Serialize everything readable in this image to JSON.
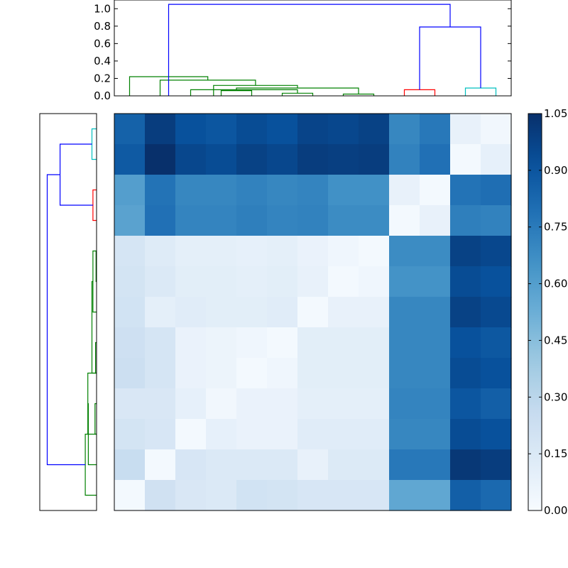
{
  "chart_data": [
    {
      "type": "dendrogram",
      "orientation": "top",
      "ylim": [
        0,
        1.1
      ],
      "yticks": [
        0.0,
        0.2,
        0.4,
        0.6,
        0.8,
        1.0
      ],
      "ytick_labels": [
        "0.0",
        "0.2",
        "0.4",
        "0.6",
        "0.8",
        "1.0"
      ],
      "leaf_count": 13,
      "links": [
        {
          "left": 9,
          "right": 10,
          "height": 0.07,
          "color": "#ff0000"
        },
        {
          "left": 11,
          "right": 12,
          "height": 0.09,
          "color": "#00bfbf"
        },
        {
          "left": 5,
          "right": 6,
          "height": 0.03,
          "color": "#008000"
        },
        {
          "left": 3,
          "right": 4,
          "height": 0.06,
          "color": "#008000"
        },
        {
          "left": 7,
          "right": 8,
          "height": 0.02,
          "color": "#008000"
        },
        {
          "left": 2,
          "right": 5.5,
          "height": 0.07,
          "color": "#008000"
        },
        {
          "left": 3.5,
          "right": 7.5,
          "height": 0.09,
          "color": "#008000"
        },
        {
          "left": 2.75,
          "right": 5.5,
          "height": 0.12,
          "color": "#008000"
        },
        {
          "left": 1,
          "right": 4.125,
          "height": 0.18,
          "color": "#008000"
        },
        {
          "left": 0,
          "right": 2.5625,
          "height": 0.22,
          "color": "#008000"
        },
        {
          "left": 9.5,
          "right": 11.5,
          "height": 0.79,
          "color": "#0000ff"
        },
        {
          "left": 1.28,
          "right": 10.5,
          "height": 1.05,
          "color": "#0000ff"
        }
      ]
    },
    {
      "type": "dendrogram",
      "orientation": "left",
      "leaf_count": 13,
      "max_height": 1.05,
      "links": [
        {
          "left": 0,
          "right": 1,
          "height": 0.09,
          "color": "#00bfbf"
        },
        {
          "left": 2,
          "right": 3,
          "height": 0.07,
          "color": "#ff0000"
        },
        {
          "left": 0.5,
          "right": 2.5,
          "height": 0.71,
          "color": "#0000ff"
        },
        {
          "left": 4,
          "right": 5,
          "height": 0.01,
          "color": "#008000"
        },
        {
          "left": 4,
          "right": 6,
          "height": 0.07,
          "color": "#008000"
        },
        {
          "left": 7,
          "right": 8,
          "height": 0.02,
          "color": "#008000"
        },
        {
          "left": 5,
          "right": 8,
          "height": 0.09,
          "color": "#008000"
        },
        {
          "left": 9,
          "right": 10,
          "height": 0.03,
          "color": "#008000"
        },
        {
          "left": 8,
          "right": 10,
          "height": 0.17,
          "color": "#008000"
        },
        {
          "left": 11,
          "right": 9,
          "height": 0.16,
          "color": "#008000"
        },
        {
          "left": 12,
          "right": 10,
          "height": 0.22,
          "color": "#008000"
        },
        {
          "left": 1.5,
          "right": 11,
          "height": 0.96,
          "color": "#0000ff"
        }
      ]
    },
    {
      "type": "heatmap",
      "colormap": "Blues",
      "vmin": 0.0,
      "vmax": 1.05,
      "colorbar_ticks": [
        0.0,
        0.15,
        0.3,
        0.45,
        0.6,
        0.75,
        0.9,
        1.05
      ],
      "colorbar_tick_labels": [
        "0.00",
        "0.15",
        "0.30",
        "0.45",
        "0.60",
        "0.75",
        "0.90",
        "1.05"
      ],
      "matrix": [
        [
          0.85,
          1.0,
          0.92,
          0.9,
          0.94,
          0.92,
          0.97,
          0.96,
          0.98,
          0.7,
          0.76,
          0.08,
          0.03
        ],
        [
          0.88,
          1.05,
          0.96,
          0.94,
          0.98,
          0.96,
          1.0,
          0.99,
          1.0,
          0.72,
          0.79,
          0.02,
          0.09
        ],
        [
          0.6,
          0.78,
          0.7,
          0.7,
          0.72,
          0.7,
          0.71,
          0.66,
          0.66,
          0.08,
          0.02,
          0.78,
          0.8
        ],
        [
          0.58,
          0.79,
          0.71,
          0.71,
          0.73,
          0.71,
          0.72,
          0.68,
          0.68,
          0.02,
          0.08,
          0.73,
          0.72
        ],
        [
          0.18,
          0.13,
          0.1,
          0.1,
          0.09,
          0.1,
          0.07,
          0.04,
          0.02,
          0.68,
          0.68,
          0.98,
          0.96
        ],
        [
          0.19,
          0.15,
          0.11,
          0.11,
          0.1,
          0.11,
          0.08,
          0.02,
          0.04,
          0.65,
          0.65,
          0.94,
          0.92
        ],
        [
          0.2,
          0.1,
          0.12,
          0.11,
          0.11,
          0.12,
          0.02,
          0.08,
          0.08,
          0.7,
          0.7,
          0.98,
          0.95
        ],
        [
          0.22,
          0.18,
          0.07,
          0.06,
          0.04,
          0.02,
          0.11,
          0.11,
          0.11,
          0.7,
          0.7,
          0.92,
          0.89
        ],
        [
          0.23,
          0.18,
          0.07,
          0.06,
          0.02,
          0.04,
          0.11,
          0.11,
          0.11,
          0.7,
          0.7,
          0.94,
          0.92
        ],
        [
          0.16,
          0.16,
          0.09,
          0.03,
          0.07,
          0.07,
          0.1,
          0.1,
          0.1,
          0.71,
          0.71,
          0.9,
          0.86
        ],
        [
          0.19,
          0.17,
          0.02,
          0.09,
          0.07,
          0.07,
          0.12,
          0.12,
          0.12,
          0.7,
          0.7,
          0.94,
          0.92
        ],
        [
          0.25,
          0.02,
          0.17,
          0.15,
          0.15,
          0.15,
          0.08,
          0.14,
          0.14,
          0.76,
          0.76,
          1.02,
          1.0
        ],
        [
          0.02,
          0.21,
          0.16,
          0.15,
          0.2,
          0.19,
          0.17,
          0.17,
          0.17,
          0.56,
          0.56,
          0.86,
          0.82
        ]
      ]
    }
  ]
}
